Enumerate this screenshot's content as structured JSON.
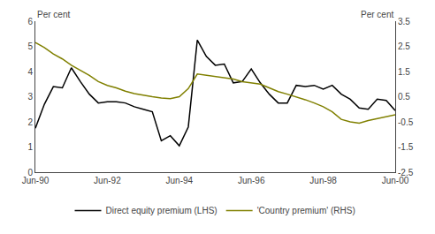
{
  "chart_data": {
    "type": "line",
    "ylabel": "Per cent",
    "y2label": "Per cent",
    "x": [
      1990.5,
      1990.75,
      1991.0,
      1991.25,
      1991.5,
      1991.75,
      1992.0,
      1992.25,
      1992.5,
      1992.75,
      1993.0,
      1993.25,
      1993.5,
      1993.75,
      1994.0,
      1994.25,
      1994.5,
      1994.75,
      1995.0,
      1995.25,
      1995.5,
      1995.75,
      1996.0,
      1996.25,
      1996.5,
      1996.75,
      1997.0,
      1997.25,
      1997.5,
      1997.75,
      1998.0,
      1998.25,
      1998.5,
      1998.75,
      1999.0,
      1999.25,
      1999.5,
      1999.75,
      2000.0,
      2000.25,
      2000.5
    ],
    "xlim": [
      1990.5,
      2000.5
    ],
    "xticks": [
      {
        "value": 1990.5,
        "label": "Jun-90"
      },
      {
        "value": 1992.5,
        "label": "Jun-92"
      },
      {
        "value": 1994.5,
        "label": "Jun-94"
      },
      {
        "value": 1996.5,
        "label": "Jun-96"
      },
      {
        "value": 1998.5,
        "label": "Jun-98"
      },
      {
        "value": 2000.5,
        "label": "Jun-00"
      }
    ],
    "ylim": [
      0,
      6
    ],
    "yticks": [
      0,
      1,
      2,
      3,
      4,
      5,
      6
    ],
    "y2lim": [
      -2.5,
      3.5
    ],
    "y2ticks": [
      -2.5,
      -1.5,
      -0.5,
      0.5,
      1.5,
      2.5,
      3.5
    ],
    "grid": false,
    "legend": "bottom",
    "series": [
      {
        "name": "Direct equity premium (LHS)",
        "color": "#000000",
        "values": [
          1.75,
          2.7,
          3.4,
          3.35,
          4.15,
          3.6,
          3.1,
          2.75,
          2.8,
          2.8,
          2.75,
          2.6,
          2.5,
          2.4,
          1.25,
          1.45,
          1.05,
          1.8,
          5.25,
          4.6,
          4.25,
          4.3,
          3.55,
          3.6,
          4.1,
          3.55,
          3.1,
          2.75,
          2.75,
          3.45,
          3.4,
          3.45,
          3.3,
          3.45,
          3.1,
          2.9,
          2.55,
          2.5,
          2.9,
          2.85,
          2.45
        ]
      },
      {
        "name": "'Country premium' (RHS)",
        "color": "#808000",
        "axis": "y2",
        "values": [
          2.65,
          2.45,
          2.2,
          2.0,
          1.75,
          1.55,
          1.35,
          1.1,
          0.95,
          0.85,
          0.72,
          0.62,
          0.55,
          0.5,
          0.45,
          0.42,
          0.5,
          0.82,
          1.4,
          1.35,
          1.3,
          1.25,
          1.2,
          1.1,
          1.05,
          1.0,
          0.85,
          0.7,
          0.6,
          0.5,
          0.38,
          0.25,
          0.1,
          -0.1,
          -0.4,
          -0.5,
          -0.55,
          -0.45,
          -0.38,
          -0.3,
          -0.22
        ]
      }
    ]
  }
}
